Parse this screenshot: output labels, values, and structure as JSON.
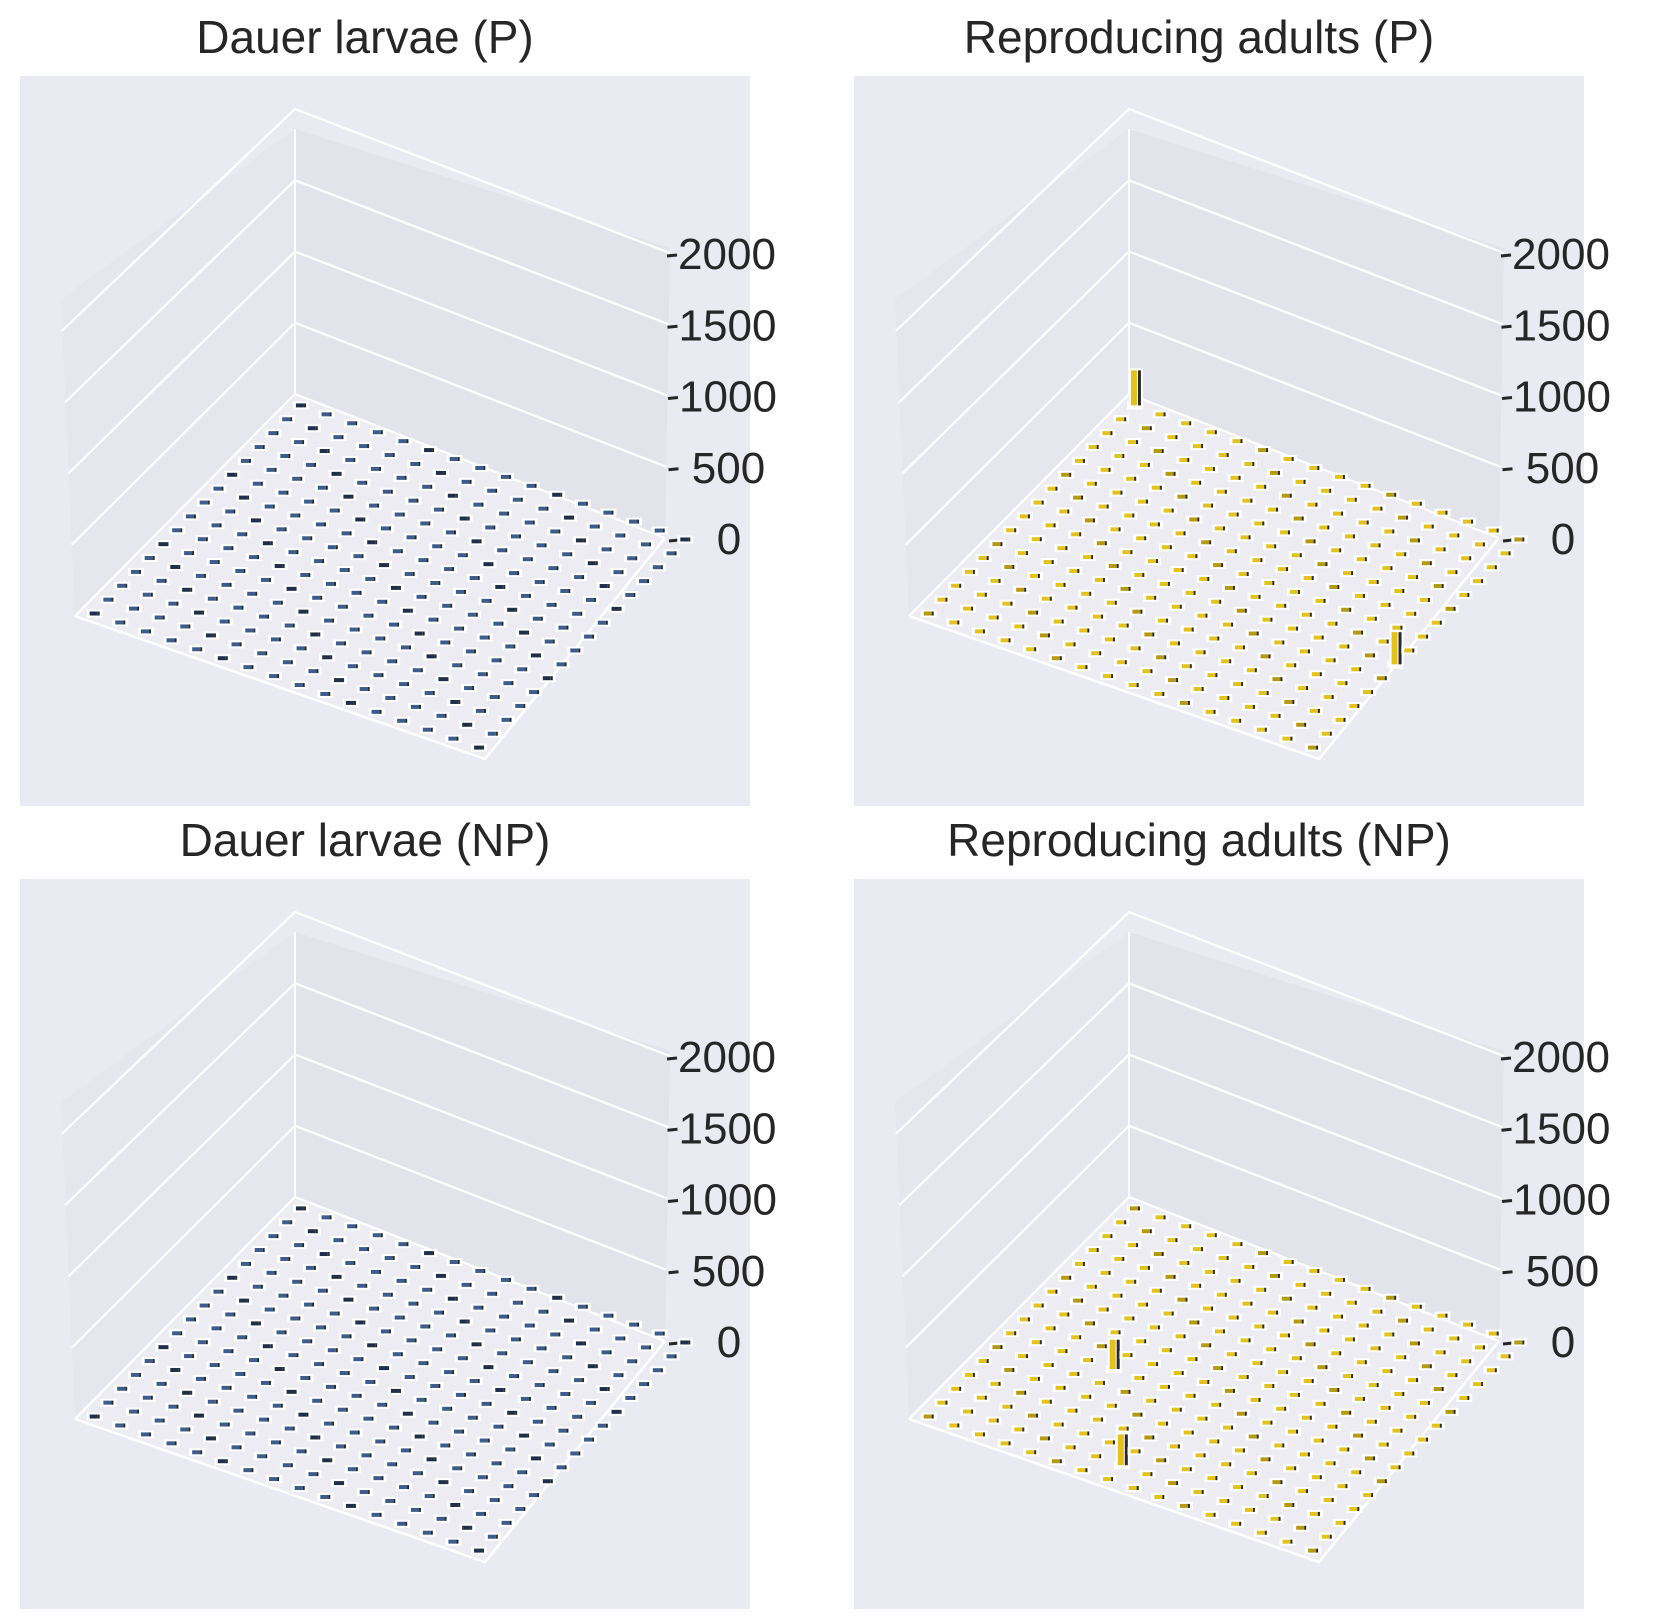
{
  "chart_data": [
    {
      "type": "bar3d",
      "title": "Dauer larvae (P)",
      "zticks": [
        "0",
        "500",
        "1000",
        "1500",
        "2000"
      ],
      "zlim": [
        0,
        2000
      ],
      "grid": "16x16",
      "colormap": "cividis",
      "tall_bars": []
    },
    {
      "type": "bar3d",
      "title": "Reproducing adults (P)",
      "zticks": [
        "0",
        "500",
        "1000",
        "1500",
        "2000"
      ],
      "zlim": [
        0,
        2000
      ],
      "grid": "16x16",
      "colormap": "cividis",
      "tall_bars": [
        {
          "i": 0,
          "j": 0,
          "value": 260
        },
        {
          "i": 9,
          "j": 15,
          "value": 240
        }
      ]
    },
    {
      "type": "bar3d",
      "title": "Dauer larvae (NP)",
      "zticks": [
        "0",
        "500",
        "1000",
        "1500",
        "2000"
      ],
      "zlim": [
        0,
        2000
      ],
      "grid": "16x16",
      "colormap": "cividis",
      "tall_bars": []
    },
    {
      "type": "bar3d",
      "title": "Reproducing adults (NP)",
      "zticks": [
        "0",
        "500",
        "1000",
        "1500",
        "2000"
      ],
      "zlim": [
        0,
        2000
      ],
      "grid": "16x16",
      "colormap": "cividis",
      "tall_bars": [
        {
          "i": 9,
          "j": 4,
          "value": 220
        },
        {
          "i": 14,
          "j": 7,
          "value": 230
        }
      ]
    }
  ],
  "colors": {
    "axes_background": "#EAEAF2",
    "pane_left": "#E6E6EE",
    "pane_back": "#E3E3EB",
    "pane_floor": "#ECECF2",
    "gridline": "#FFFFFF",
    "text": "#262626",
    "dauer_bar_top": "#3B5C8C",
    "adult_bar_top": "#E3C21C",
    "adult_bar_side": "#B59A10",
    "dark_side": "#2A2A2A"
  }
}
